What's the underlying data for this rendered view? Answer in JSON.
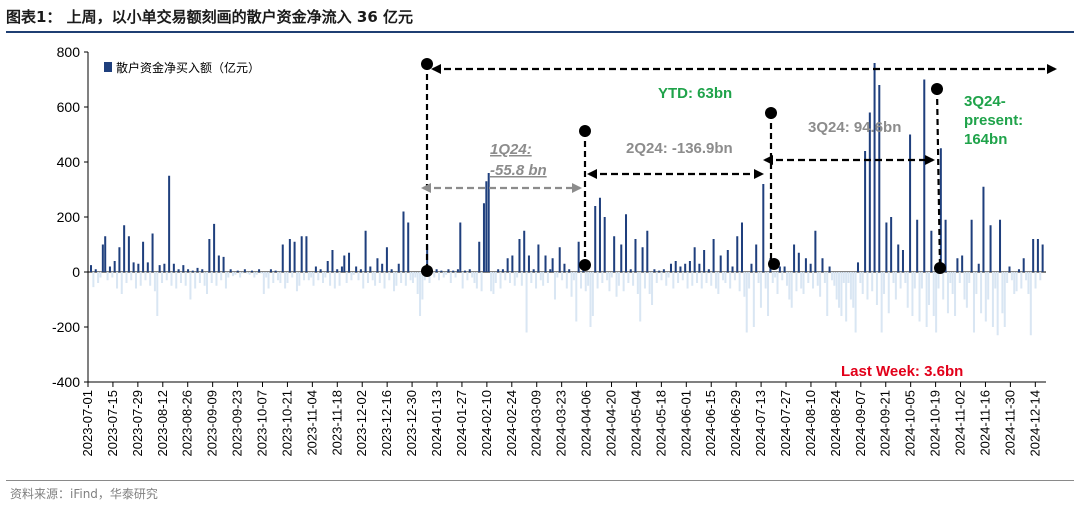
{
  "header": {
    "title": "图表1： 上周，以小单交易额刻画的散户资金净流入 36 亿元",
    "source": "资料来源：iFind，华泰研究"
  },
  "colors": {
    "positive_bar": "#1f3f7d",
    "negative_bar": "#d9e6f3",
    "gray_annotation": "#8c8c8c",
    "green_annotation": "#1fa34a",
    "red_annotation": "#e2001a",
    "rule": "#1f3f73"
  },
  "chart_data": {
    "type": "bar",
    "title": "上周，以小单交易额刻画的散户资金净流入 36 亿元",
    "ylim": [
      -400,
      800
    ],
    "yticks": [
      -400,
      -200,
      0,
      200,
      400,
      600,
      800
    ],
    "xticks": [
      "2023-07-01",
      "2023-07-15",
      "2023-07-29",
      "2023-08-12",
      "2023-08-26",
      "2023-09-09",
      "2023-09-23",
      "2023-10-07",
      "2023-10-21",
      "2023-11-04",
      "2023-11-18",
      "2023-12-02",
      "2023-12-16",
      "2023-12-30",
      "2024-01-13",
      "2024-01-27",
      "2024-02-10",
      "2024-02-24",
      "2024-03-09",
      "2024-03-23",
      "2024-04-06",
      "2024-04-20",
      "2024-05-04",
      "2024-05-18",
      "2024-06-01",
      "2024-06-15",
      "2024-06-29",
      "2024-07-13",
      "2024-07-27",
      "2024-08-10",
      "2024-08-24",
      "2024-09-07",
      "2024-09-21",
      "2024-10-05",
      "2024-10-19",
      "2024-11-02",
      "2024-11-16",
      "2024-11-30",
      "2024-12-14"
    ],
    "x_start": "2023-07-01",
    "x_end": "2024-12-20",
    "legend": "散户资金净买入额（亿元）",
    "series": [
      {
        "name": "散户资金净买入额（亿元）",
        "values": [
          25,
          -55,
          10,
          -40,
          -20,
          100,
          130,
          -30,
          20,
          -20,
          40,
          -60,
          90,
          -80,
          170,
          -40,
          130,
          -30,
          35,
          -60,
          30,
          -50,
          110,
          -30,
          35,
          -50,
          140,
          -70,
          -160,
          25,
          -40,
          30,
          -30,
          350,
          -50,
          30,
          -60,
          10,
          -40,
          25,
          -50,
          10,
          -100,
          5,
          -60,
          15,
          -40,
          10,
          -50,
          -80,
          120,
          -40,
          175,
          -50,
          60,
          -30,
          55,
          -60,
          -20,
          10,
          -15,
          -10,
          5,
          -20,
          -5,
          10,
          -5,
          -10,
          5,
          -20,
          -10,
          10,
          -5,
          -80,
          -20,
          -60,
          10,
          -40,
          5,
          -30,
          -40,
          100,
          -60,
          -40,
          120,
          -20,
          110,
          -70,
          -50,
          130,
          -30,
          130,
          -30,
          -20,
          -50,
          20,
          -30,
          10,
          -40,
          -20,
          40,
          -50,
          80,
          -60,
          10,
          -50,
          20,
          60,
          -40,
          70,
          -30,
          -10,
          20,
          -30,
          10,
          -60,
          150,
          -40,
          20,
          -30,
          -50,
          50,
          -40,
          30,
          -60,
          90,
          -30,
          10,
          -70,
          -50,
          30,
          -40,
          220,
          -50,
          180,
          -30,
          -40,
          -20,
          -80,
          -160,
          -100,
          -30,
          100,
          -40,
          5,
          -20,
          10,
          -30,
          5,
          -20,
          -10,
          10,
          -40,
          5,
          -20,
          10,
          180,
          -60,
          5,
          -30,
          10,
          -20,
          -40,
          -60,
          110,
          -70,
          250,
          330,
          360,
          -70,
          -80,
          -40,
          10,
          -60,
          10,
          -30,
          50,
          -40,
          60,
          -50,
          -20,
          120,
          -50,
          150,
          -220,
          60,
          -40,
          10,
          -60,
          100,
          -30,
          -50,
          60,
          -40,
          10,
          50,
          -100,
          -20,
          90,
          -30,
          30,
          -60,
          10,
          -90,
          -30,
          -180,
          110,
          -60,
          30,
          -70,
          -50,
          -200,
          -160,
          240,
          -60,
          270,
          -40,
          200,
          -30,
          -70,
          -20,
          130,
          -90,
          -50,
          100,
          -70,
          210,
          -40,
          10,
          -50,
          120,
          -80,
          -180,
          90,
          -60,
          150,
          -80,
          -120,
          10,
          -40,
          5,
          -30,
          10,
          -50,
          -20,
          30,
          -60,
          40,
          -40,
          20,
          -30,
          30,
          -60,
          40,
          -50,
          90,
          -40,
          30,
          -60,
          80,
          -40,
          10,
          -50,
          120,
          -60,
          -80,
          60,
          -30,
          -40,
          80,
          -60,
          20,
          -30,
          130,
          -70,
          180,
          -90,
          -220,
          -60,
          30,
          -200,
          100,
          -40,
          -130,
          320,
          -60,
          -160,
          50,
          -40,
          -20,
          -80,
          20,
          -30,
          20,
          -50,
          -100,
          -130,
          100,
          -70,
          70,
          -60,
          -80,
          50,
          -40,
          30,
          -60,
          150,
          -50,
          -90,
          50,
          -40,
          -160,
          20,
          -30,
          -50,
          -100,
          -130,
          -160,
          -40,
          -180,
          -40,
          -100,
          -130,
          -220,
          35,
          -40,
          -80,
          440,
          -100,
          580,
          -70,
          760,
          -120,
          680,
          -220,
          -80,
          180,
          -150,
          200,
          -40,
          -100,
          100,
          -60,
          80,
          -40,
          -130,
          500,
          -160,
          -60,
          190,
          -180,
          -60,
          700,
          -200,
          -120,
          150,
          -160,
          -220,
          -60,
          450,
          -100,
          190,
          -150,
          -40,
          -80,
          -160,
          50,
          -40,
          60,
          -100,
          -130,
          -40,
          190,
          -220,
          -80,
          30,
          -150,
          310,
          -180,
          -100,
          170,
          -200,
          -60,
          -230,
          190,
          -150,
          -200,
          -40,
          20,
          -30,
          -80,
          -70,
          10,
          -60,
          50,
          -30,
          -80,
          -230,
          120,
          -60,
          120,
          -30,
          100
        ],
        "color": "#1f3f7d"
      }
    ],
    "annotations": {
      "ytd": "YTD: 63bn",
      "q1": "1Q24:",
      "q1_value": "-55.8 bn",
      "q2": "2Q24: -136.9bn",
      "q3": "3Q24: 94.6bn",
      "q3p_line1": "3Q24-",
      "q3p_line2": "present:",
      "q3p_line3": "164bn",
      "last_week": "Last Week: 3.6bn"
    }
  }
}
